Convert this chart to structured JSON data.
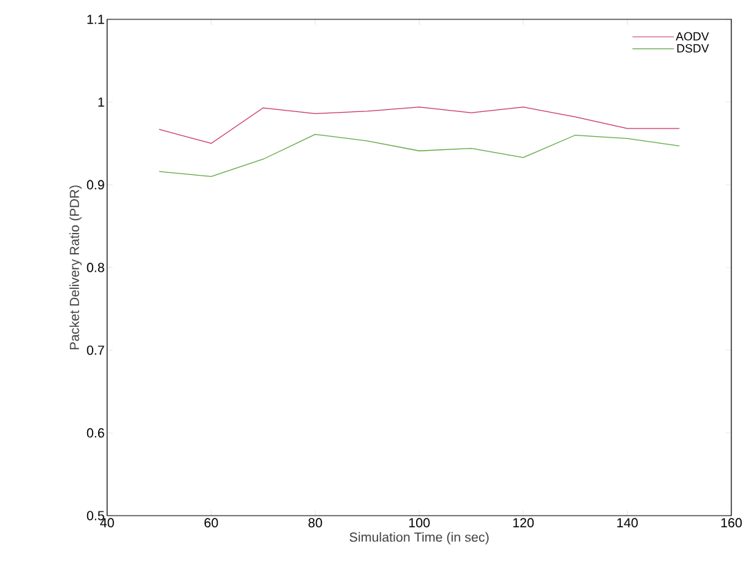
{
  "chart_data": {
    "type": "line",
    "xlabel": "Simulation Time (in sec)",
    "ylabel": "Packet Delivery Ratio (PDR)",
    "x": [
      50,
      60,
      70,
      80,
      90,
      100,
      110,
      120,
      130,
      140,
      150
    ],
    "series": [
      {
        "name": "AODV",
        "color": "#cc3d6b",
        "values": [
          0.967,
          0.95,
          0.993,
          0.986,
          0.989,
          0.994,
          0.987,
          0.994,
          0.982,
          0.968,
          0.968
        ]
      },
      {
        "name": "DSDV",
        "color": "#6aaa4a",
        "values": [
          0.916,
          0.91,
          0.931,
          0.961,
          0.953,
          0.941,
          0.944,
          0.933,
          0.96,
          0.956,
          0.947
        ]
      }
    ],
    "xlim": [
      40,
      160
    ],
    "ylim": [
      0.5,
      1.1
    ],
    "xticks": [
      40,
      60,
      80,
      100,
      120,
      140,
      160
    ],
    "yticks": [
      0.5,
      0.6,
      0.7,
      0.8,
      0.9,
      1,
      1.1
    ],
    "legend": "top right",
    "marker": "none",
    "line_style": "solid",
    "grid": false
  }
}
